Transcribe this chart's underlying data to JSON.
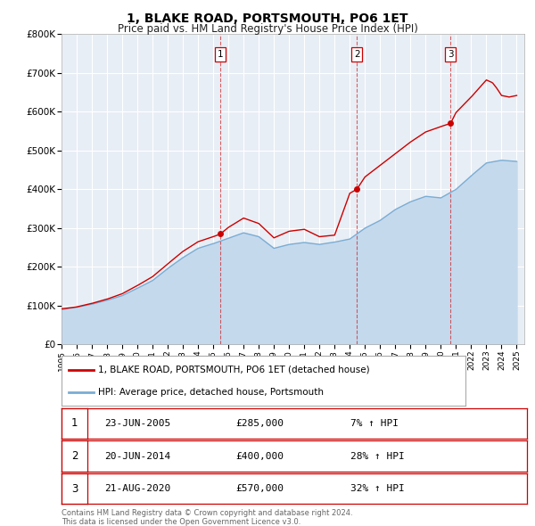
{
  "title": "1, BLAKE ROAD, PORTSMOUTH, PO6 1ET",
  "subtitle": "Price paid vs. HM Land Registry's House Price Index (HPI)",
  "hpi_label": "HPI: Average price, detached house, Portsmouth",
  "property_label": "1, BLAKE ROAD, PORTSMOUTH, PO6 1ET (detached house)",
  "red_color": "#cc0000",
  "blue_color": "#7aadd4",
  "blue_fill": "#c5d9ed",
  "plot_bg": "#e8eef5",
  "grid_color": "#ffffff",
  "ylim": [
    0,
    800000
  ],
  "yticks": [
    0,
    100000,
    200000,
    300000,
    400000,
    500000,
    600000,
    700000,
    800000
  ],
  "ytick_labels": [
    "£0",
    "£100K",
    "£200K",
    "£300K",
    "£400K",
    "£500K",
    "£600K",
    "£700K",
    "£800K"
  ],
  "sale_dates": [
    2005.47,
    2014.46,
    2020.64
  ],
  "sale_prices": [
    285000,
    400000,
    570000
  ],
  "sale_labels": [
    "1",
    "2",
    "3"
  ],
  "sale_info": [
    {
      "num": "1",
      "date": "23-JUN-2005",
      "price": "£285,000",
      "pct": "7% ↑ HPI"
    },
    {
      "num": "2",
      "date": "20-JUN-2014",
      "price": "£400,000",
      "pct": "28% ↑ HPI"
    },
    {
      "num": "3",
      "date": "21-AUG-2020",
      "price": "£570,000",
      "pct": "32% ↑ HPI"
    }
  ],
  "footnote": "Contains HM Land Registry data © Crown copyright and database right 2024.\nThis data is licensed under the Open Government Licence v3.0.",
  "xlim_start": 1995.0,
  "xlim_end": 2025.5,
  "xticks": [
    1995,
    1996,
    1997,
    1998,
    1999,
    2000,
    2001,
    2002,
    2003,
    2004,
    2005,
    2006,
    2007,
    2008,
    2009,
    2010,
    2011,
    2012,
    2013,
    2014,
    2015,
    2016,
    2017,
    2018,
    2019,
    2020,
    2021,
    2022,
    2023,
    2024,
    2025
  ]
}
